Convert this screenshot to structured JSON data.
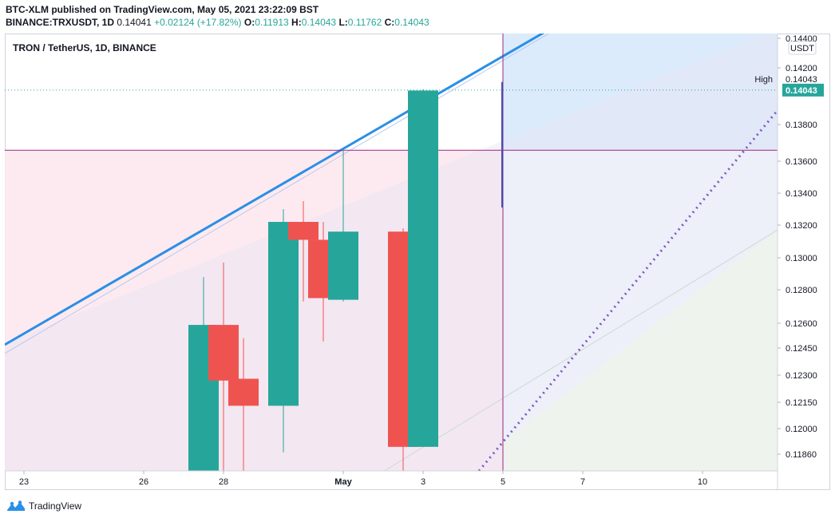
{
  "header": {
    "publisher_line": "BTC-XLM published on TradingView.com, May 05, 2021 23:22:09 BST",
    "symbol": "BINANCE:TRXUSDT, 1D",
    "last": "0.14041",
    "change": "+0.02124 (+17.82%)",
    "o_label": "O:",
    "o_value": "0.11913",
    "h_label": "H:",
    "h_value": "0.14043",
    "l_label": "L:",
    "l_value": "0.11762",
    "c_label": "C:",
    "c_value": "0.14043"
  },
  "legend": {
    "title": "TRON / TetherUS, 1D, BINANCE"
  },
  "footer": {
    "brand": "TradingView"
  },
  "colors": {
    "up": "#26a69a",
    "down": "#ef5350",
    "trendline": "#2a8fe6",
    "purple": "#9c2780",
    "dotted": "#7e57c2"
  },
  "chart_data": {
    "type": "candlestick",
    "y_axis_unit": "USDT",
    "y_ticks": [
      "0.14400",
      "0.14200",
      "0.13800",
      "0.13600",
      "0.13400",
      "0.13200",
      "0.13000",
      "0.12800",
      "0.12600",
      "0.12450",
      "0.12300",
      "0.12150",
      "0.12000",
      "0.11860"
    ],
    "y_tick_values": [
      0.144,
      0.142,
      0.138,
      0.136,
      0.134,
      0.132,
      0.13,
      0.128,
      0.126,
      0.1245,
      0.123,
      0.1215,
      0.12,
      0.1186
    ],
    "x_ticks": [
      {
        "label": "23",
        "day": 0
      },
      {
        "label": "26",
        "day": 3
      },
      {
        "label": "28",
        "day": 5
      },
      {
        "label": "May",
        "day": 8
      },
      {
        "label": "3",
        "day": 10
      },
      {
        "label": "5",
        "day": 12
      },
      {
        "label": "7",
        "day": 14
      },
      {
        "label": "10",
        "day": 17
      }
    ],
    "candles": [
      {
        "day": 4.5,
        "open": 0.116,
        "high": 0.1288,
        "low": 0.116,
        "close": 0.1259
      },
      {
        "day": 5.0,
        "open": 0.1259,
        "high": 0.1297,
        "low": 0.116,
        "close": 0.1227
      },
      {
        "day": 5.5,
        "open": 0.1228,
        "high": 0.1251,
        "low": 0.116,
        "close": 0.1213
      },
      {
        "day": 6.5,
        "open": 0.1213,
        "high": 0.133,
        "low": 0.1187,
        "close": 0.1322
      },
      {
        "day": 7.0,
        "open": 0.1322,
        "high": 0.1335,
        "low": 0.1273,
        "close": 0.1311
      },
      {
        "day": 7.5,
        "open": 0.1311,
        "high": 0.1322,
        "low": 0.1249,
        "close": 0.1275
      },
      {
        "day": 8.0,
        "open": 0.1274,
        "high": 0.1366,
        "low": 0.1273,
        "close": 0.1316
      },
      {
        "day": 9.5,
        "open": 0.1316,
        "high": 0.1318,
        "low": 0.117,
        "close": 0.119
      },
      {
        "day": 10.0,
        "open": 0.119,
        "high": 0.1405,
        "low": 0.119,
        "close": 0.1404
      }
    ],
    "high_label": "High",
    "high_value": "0.14043",
    "last_price": "0.14043",
    "horizontal_level": 0.1366,
    "cursor_day": 12
  }
}
